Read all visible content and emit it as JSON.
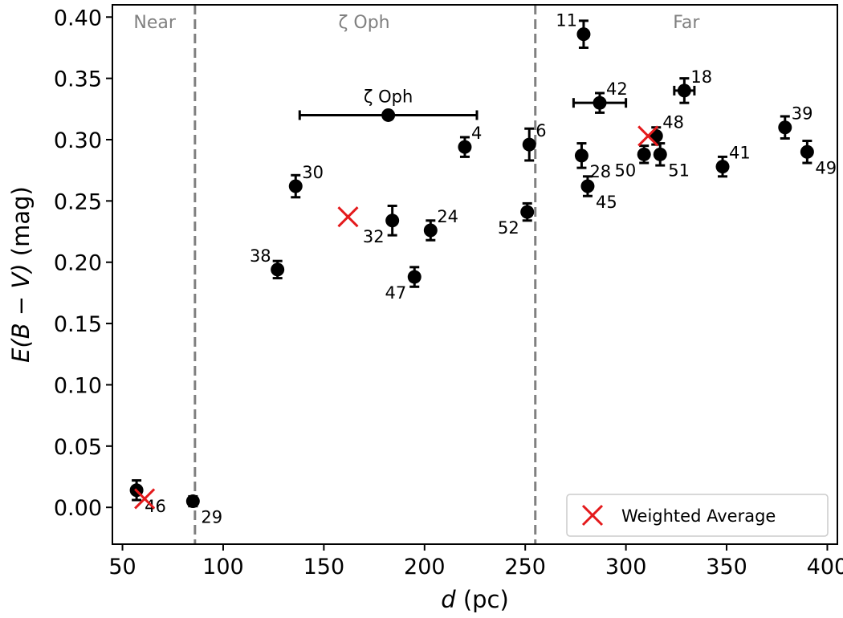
{
  "chart_data": {
    "type": "scatter",
    "xlabel": {
      "var": "d",
      "rest": " (pc)"
    },
    "ylabel": {
      "var": "E(B − V)",
      "rest": " (mag)"
    },
    "xlim": [
      45,
      405
    ],
    "ylim": [
      -0.03,
      0.41
    ],
    "xticks": [
      50,
      100,
      150,
      200,
      250,
      300,
      350,
      400
    ],
    "yticks": [
      0.0,
      0.05,
      0.1,
      0.15,
      0.2,
      0.25,
      0.3,
      0.35,
      0.4
    ],
    "region_boundaries": [
      86,
      255
    ],
    "regions": [
      {
        "label": "Near",
        "x": 66
      },
      {
        "label": "ζ Oph",
        "x": 170
      },
      {
        "label": "Far",
        "x": 330
      }
    ],
    "points": [
      {
        "label": "46",
        "x": 57,
        "y": 0.014,
        "yerr": 0.008,
        "lab_pos": "right-below"
      },
      {
        "label": "29",
        "x": 85,
        "y": 0.005,
        "yerr": 0.004,
        "lab_pos": "right-below"
      },
      {
        "label": "38",
        "x": 127,
        "y": 0.194,
        "yerr": 0.007,
        "lab_pos": "left-above"
      },
      {
        "label": "30",
        "x": 136,
        "y": 0.262,
        "yerr": 0.009,
        "lab_pos": "right-above"
      },
      {
        "label": "ζ Oph",
        "x": 182,
        "y": 0.32,
        "xerr": 44,
        "lab_pos": "above"
      },
      {
        "label": "32",
        "x": 184,
        "y": 0.234,
        "yerr": 0.012,
        "lab_pos": "left-below"
      },
      {
        "label": "47",
        "x": 195,
        "y": 0.188,
        "yerr": 0.008,
        "lab_pos": "left-below"
      },
      {
        "label": "24",
        "x": 203,
        "y": 0.226,
        "yerr": 0.008,
        "lab_pos": "right-above"
      },
      {
        "label": "4",
        "x": 220,
        "y": 0.294,
        "yerr": 0.008,
        "lab_pos": "right-above"
      },
      {
        "label": "52",
        "x": 251,
        "y": 0.241,
        "yerr": 0.007,
        "lab_pos": "left-below"
      },
      {
        "label": "6",
        "x": 252,
        "y": 0.296,
        "yerr": 0.013,
        "lab_pos": "right-above"
      },
      {
        "label": "11",
        "x": 279,
        "y": 0.386,
        "yerr": 0.011,
        "lab_pos": "left-above"
      },
      {
        "label": "28",
        "x": 278,
        "y": 0.287,
        "yerr": 0.01,
        "lab_pos": "right-below"
      },
      {
        "label": "45",
        "x": 281,
        "y": 0.262,
        "yerr": 0.008,
        "lab_pos": "right-below"
      },
      {
        "label": "42",
        "x": 287,
        "y": 0.33,
        "yerr": 0.008,
        "xerr": 13,
        "lab_pos": "right-above"
      },
      {
        "label": "50",
        "x": 309,
        "y": 0.288,
        "yerr": 0.007,
        "lab_pos": "left-below"
      },
      {
        "label": "48",
        "x": 315,
        "y": 0.303,
        "yerr": 0.007,
        "lab_pos": "right-above"
      },
      {
        "label": "51",
        "x": 317,
        "y": 0.288,
        "yerr": 0.009,
        "lab_pos": "right-below"
      },
      {
        "label": "18",
        "x": 329,
        "y": 0.34,
        "yerr": 0.01,
        "xerr": 5,
        "lab_pos": "right-above"
      },
      {
        "label": "41",
        "x": 348,
        "y": 0.278,
        "yerr": 0.008,
        "lab_pos": "right-above"
      },
      {
        "label": "39",
        "x": 379,
        "y": 0.31,
        "yerr": 0.009,
        "lab_pos": "right-above"
      },
      {
        "label": "49",
        "x": 390,
        "y": 0.29,
        "yerr": 0.009,
        "lab_pos": "right-below"
      }
    ],
    "weighted_average": [
      {
        "x": 61,
        "y": 0.007
      },
      {
        "x": 162,
        "y": 0.237
      },
      {
        "x": 311,
        "y": 0.303
      }
    ],
    "legend": {
      "label": "Weighted Average",
      "position": "lower-right"
    },
    "colors": {
      "points": "#000000",
      "average": "#e41a1c",
      "divider": "#808080",
      "region_text": "#808080"
    }
  }
}
